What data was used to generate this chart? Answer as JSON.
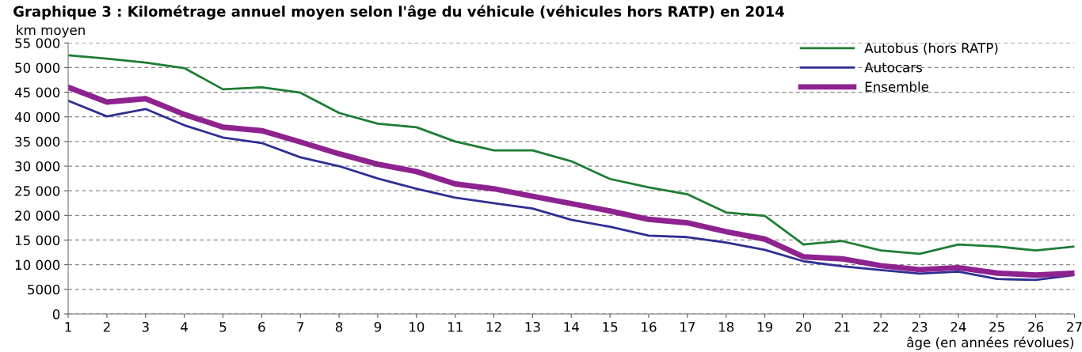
{
  "chart_data": {
    "type": "line",
    "title": "Graphique 3 : Kilométrage annuel moyen selon l'âge du véhicule (véhicules hors RATP) en 2014",
    "ylabel": "km moyen",
    "xlabel": "âge (en années révolues)",
    "x": [
      1,
      2,
      3,
      4,
      5,
      6,
      7,
      8,
      9,
      10,
      11,
      12,
      13,
      14,
      15,
      16,
      17,
      18,
      19,
      20,
      21,
      22,
      23,
      24,
      25,
      26,
      27
    ],
    "series": [
      {
        "name": "Autobus (hors RATP)",
        "color": "#1e7d34",
        "values": [
          52500,
          51800,
          51000,
          49900,
          45600,
          46000,
          44900,
          40800,
          38600,
          37900,
          35000,
          33200,
          33200,
          31000,
          27400,
          25700,
          24300,
          20600,
          19900,
          14100,
          14800,
          12900,
          12200,
          14100,
          13700,
          12900,
          13700
        ]
      },
      {
        "name": "Autocars",
        "color": "#2e2f94",
        "values": [
          43300,
          40100,
          41600,
          38300,
          35800,
          34700,
          31800,
          30000,
          27500,
          25400,
          23600,
          22500,
          21400,
          19100,
          17700,
          15900,
          15600,
          14500,
          13000,
          10700,
          9700,
          8900,
          8200,
          8600,
          7100,
          6900,
          7900
        ]
      },
      {
        "name": "Ensemble",
        "color": "#8e2390",
        "values": [
          46000,
          43000,
          43700,
          40500,
          37900,
          37200,
          34900,
          32500,
          30400,
          28900,
          26400,
          25400,
          23900,
          22400,
          20900,
          19200,
          18500,
          16700,
          15200,
          11600,
          11200,
          9800,
          9000,
          9400,
          8300,
          7900,
          8300
        ]
      }
    ],
    "xlim": [
      1,
      27
    ],
    "xticks": [
      1,
      2,
      3,
      4,
      5,
      6,
      7,
      8,
      9,
      10,
      11,
      12,
      13,
      14,
      15,
      16,
      17,
      18,
      19,
      20,
      21,
      22,
      23,
      24,
      25,
      26,
      27
    ],
    "ylim": [
      0,
      55000
    ],
    "yticks": [
      0,
      5000,
      {
        "value": 10000,
        "label": "10 000"
      },
      {
        "value": 15000,
        "label": "15 000"
      },
      {
        "value": 20000,
        "label": "20 000"
      },
      {
        "value": 25000,
        "label": "25 000"
      },
      {
        "value": 30000,
        "label": "30 000"
      },
      {
        "value": 35000,
        "label": "35 000"
      },
      {
        "value": 40000,
        "label": "40 000"
      },
      {
        "value": 45000,
        "label": "45 000"
      },
      {
        "value": 50000,
        "label": "50 000"
      },
      {
        "value": 55000,
        "label": "55 000"
      }
    ],
    "grid": "y",
    "legend": "top right",
    "marker": "none",
    "line_style": "solid"
  }
}
